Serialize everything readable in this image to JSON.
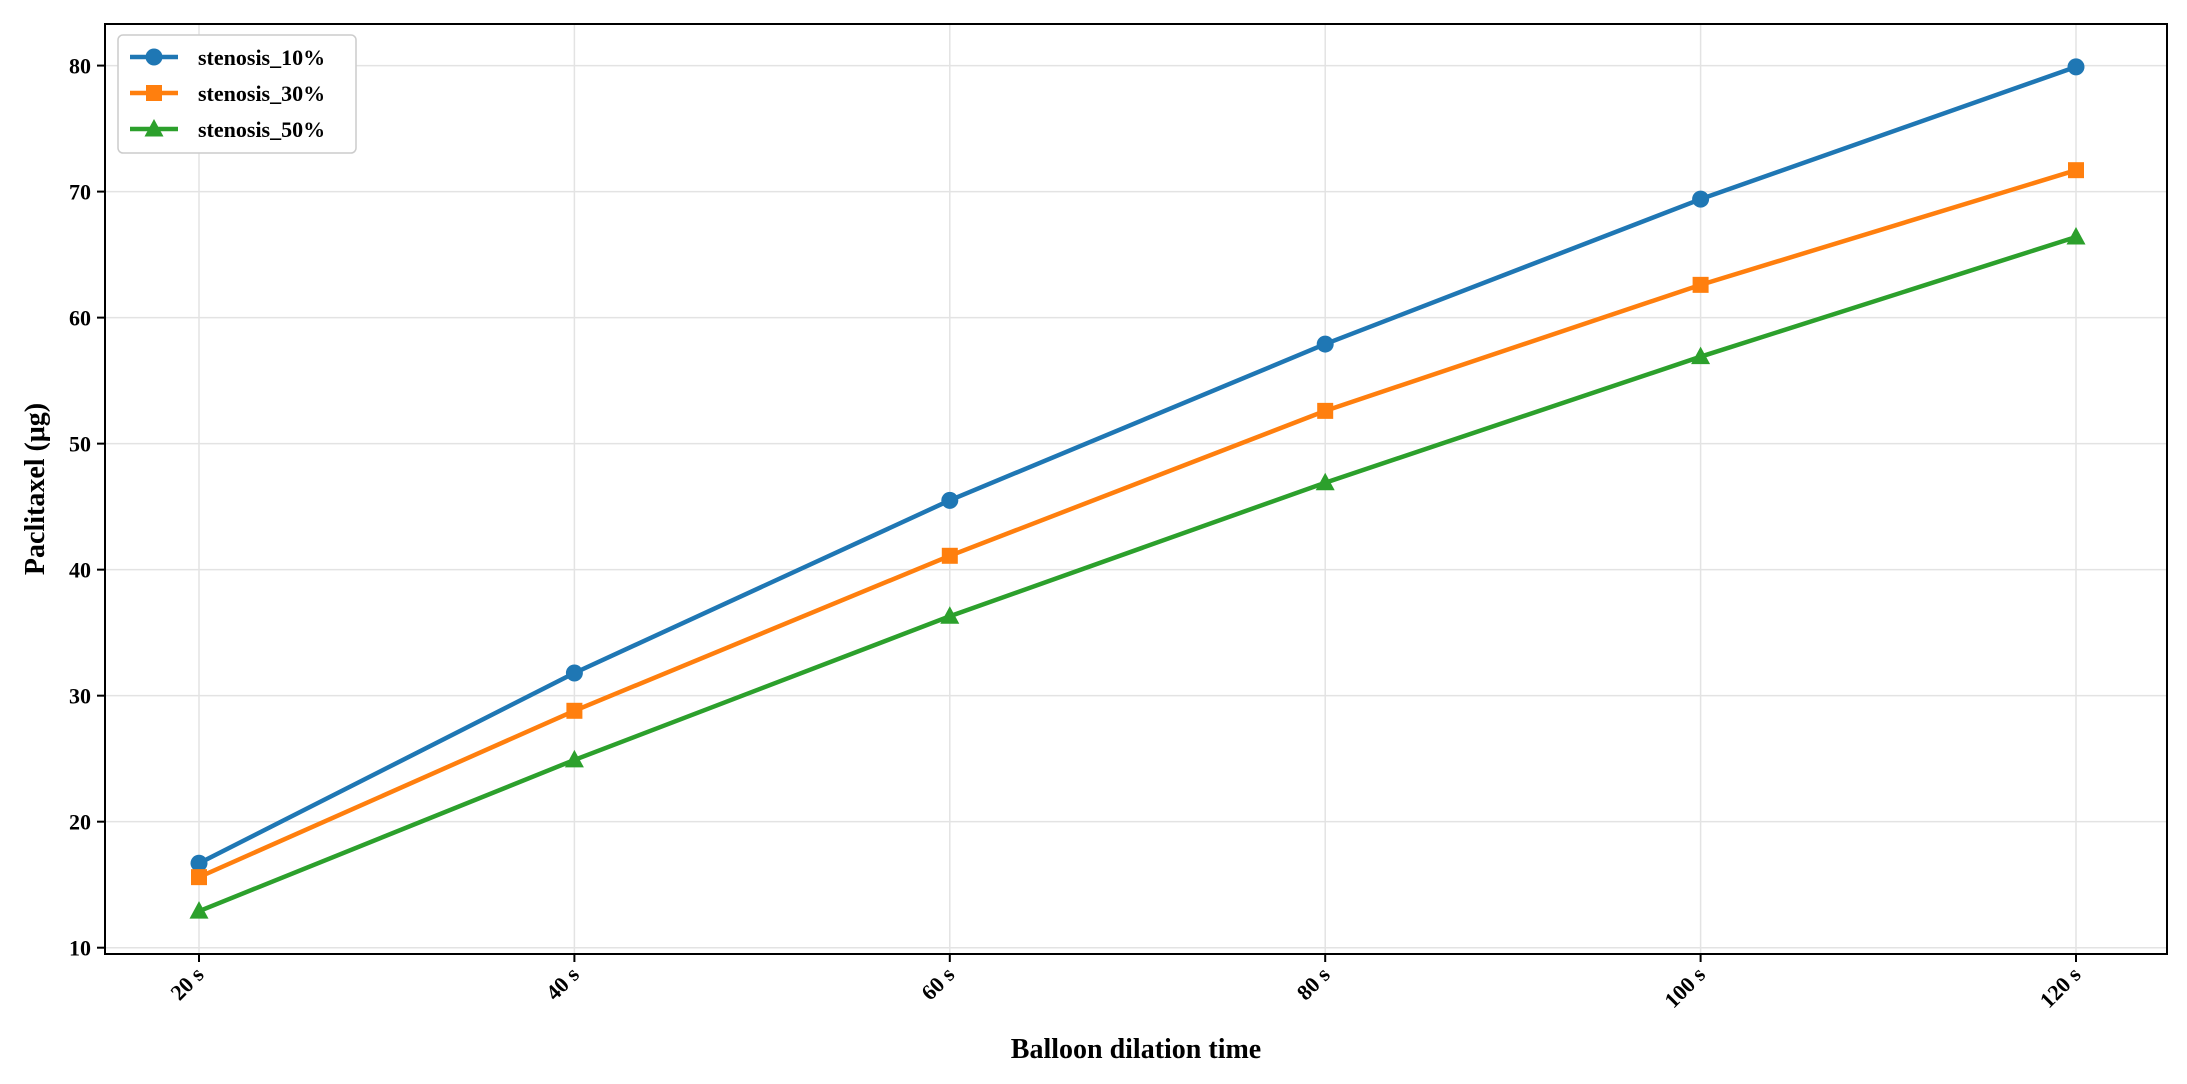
{
  "chart_data": {
    "type": "line",
    "title": "",
    "xlabel": "Balloon dilation time",
    "ylabel": "Paclitaxel (μg)",
    "categories": [
      "20 s",
      "40 s",
      "60 s",
      "80 s",
      "100 s",
      "120 s"
    ],
    "yticks": [
      10,
      20,
      30,
      40,
      50,
      60,
      70,
      80
    ],
    "ylim": [
      9.5,
      83.3
    ],
    "grid": true,
    "legend_position": "top-left",
    "series": [
      {
        "name": "stenosis_10%",
        "color": "#1f77b4",
        "marker": "circle",
        "values": [
          16.7,
          31.8,
          45.5,
          57.9,
          69.4,
          79.9
        ]
      },
      {
        "name": "stenosis_30%",
        "color": "#ff7f0e",
        "marker": "square",
        "values": [
          15.6,
          28.8,
          41.1,
          52.6,
          62.6,
          71.7
        ]
      },
      {
        "name": "stenosis_50%",
        "color": "#2ca02c",
        "marker": "triangle",
        "values": [
          12.9,
          24.9,
          36.3,
          46.9,
          56.9,
          66.4
        ]
      }
    ]
  }
}
